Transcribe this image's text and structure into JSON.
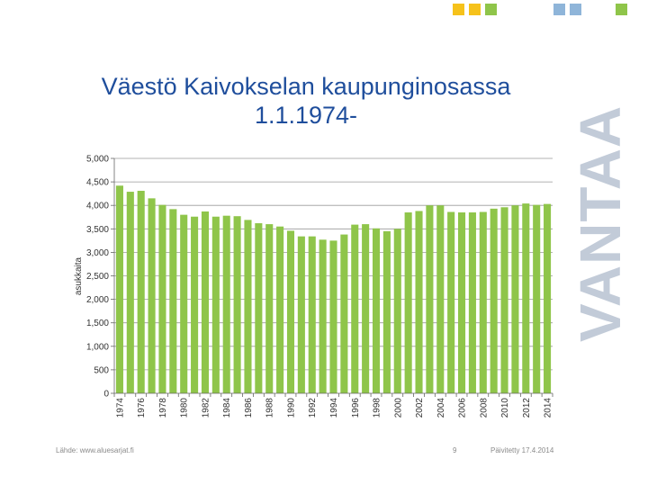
{
  "header": {
    "title_line1": "Väestö Kaivokselan kaupunginosassa",
    "title_line2": "1.1.1974-"
  },
  "brand": {
    "logo_text": "VANTAA",
    "squares": [
      "#f6c21b",
      "#f6c21b",
      "#8fc54a",
      "#8fb5d9",
      "#8fb5d9",
      "#8fc54a"
    ]
  },
  "footer": {
    "source": "Lähde: www.aluesarjat.fi",
    "page_number": "9",
    "updated": "Päivitetty 17.4.2014"
  },
  "chart_data": {
    "type": "bar",
    "ylabel": "asukkaita",
    "xlabel": "",
    "ylim": [
      0,
      5000
    ],
    "yticks": [
      0,
      500,
      1000,
      1500,
      2000,
      2500,
      3000,
      3500,
      4000,
      4500,
      5000
    ],
    "ytick_labels": [
      "0",
      "500",
      "1,000",
      "1,500",
      "2,000",
      "2,500",
      "3,000",
      "3,500",
      "4,000",
      "4,500",
      "5,000"
    ],
    "grid": true,
    "bar_color": "#8fc54a",
    "categories": [
      "1974",
      "1975",
      "1976",
      "1977",
      "1978",
      "1979",
      "1980",
      "1981",
      "1982",
      "1983",
      "1984",
      "1985",
      "1986",
      "1987",
      "1988",
      "1989",
      "1990",
      "1991",
      "1992",
      "1993",
      "1994",
      "1995",
      "1996",
      "1997",
      "1998",
      "1999",
      "2000",
      "2001",
      "2002",
      "2003",
      "2004",
      "2005",
      "2006",
      "2007",
      "2008",
      "2009",
      "2010",
      "2011",
      "2012",
      "2013",
      "2014"
    ],
    "tick_labels": [
      "1974",
      "",
      "1976",
      "",
      "1978",
      "",
      "1980",
      "",
      "1982",
      "",
      "1984",
      "",
      "1986",
      "",
      "1988",
      "",
      "1990",
      "",
      "1992",
      "",
      "1994",
      "",
      "1996",
      "",
      "1998",
      "",
      "2000",
      "",
      "2002",
      "",
      "2004",
      "",
      "2006",
      "",
      "2008",
      "",
      "2010",
      "",
      "2012",
      "",
      "2014"
    ],
    "values": [
      4420,
      4290,
      4310,
      4150,
      4010,
      3920,
      3800,
      3760,
      3870,
      3760,
      3780,
      3770,
      3690,
      3620,
      3600,
      3550,
      3460,
      3340,
      3340,
      3270,
      3250,
      3380,
      3590,
      3600,
      3510,
      3450,
      3500,
      3850,
      3880,
      4000,
      4000,
      3860,
      3850,
      3850,
      3860,
      3930,
      3960,
      4000,
      4040,
      4010,
      4030
    ]
  }
}
